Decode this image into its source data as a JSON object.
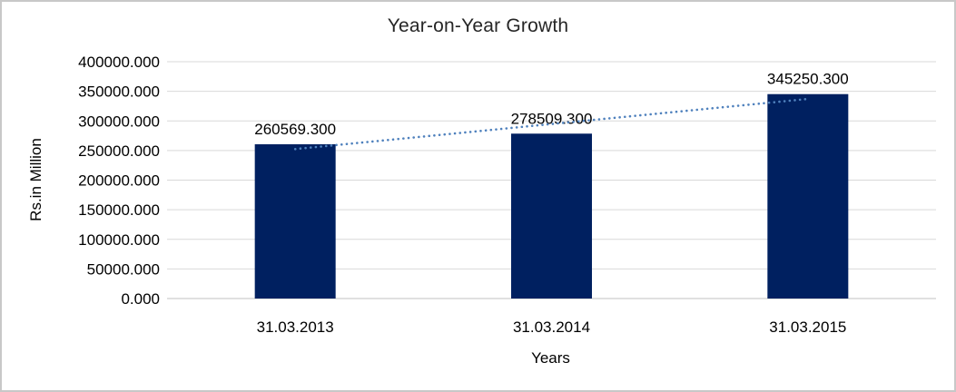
{
  "chart_data": {
    "type": "bar",
    "title": "Year-on-Year Growth",
    "xlabel": "Years",
    "ylabel": "Rs.in Million",
    "categories": [
      "31.03.2013",
      "31.03.2014",
      "31.03.2015"
    ],
    "values": [
      260569.3,
      278509.3,
      345250.3
    ],
    "value_labels": [
      "260569.300",
      "278509.300",
      "345250.300"
    ],
    "ylim": [
      0,
      400000
    ],
    "ytick_step": 50000,
    "y_ticks": [
      {
        "value": 400000,
        "label": "400000.000"
      },
      {
        "value": 350000,
        "label": "350000.000"
      },
      {
        "value": 300000,
        "label": "300000.000"
      },
      {
        "value": 250000,
        "label": "250000.000"
      },
      {
        "value": 200000,
        "label": "200000.000"
      },
      {
        "value": 150000,
        "label": "150000.000"
      },
      {
        "value": 100000,
        "label": "100000.000"
      },
      {
        "value": 50000,
        "label": "50000.000"
      },
      {
        "value": 0,
        "label": "0.000"
      }
    ],
    "grid": true,
    "legend": false,
    "trendline": {
      "type": "linear",
      "style": "dotted"
    }
  },
  "colors": {
    "bar": "#002060",
    "trendline": "#4F81BD",
    "gridline": "#D9D9D9",
    "axis_line": "#C0C0C0",
    "tick_text": "#000000",
    "title_text": "#262626",
    "frame_border": "#C8C8C8",
    "background": "#FFFFFF"
  }
}
